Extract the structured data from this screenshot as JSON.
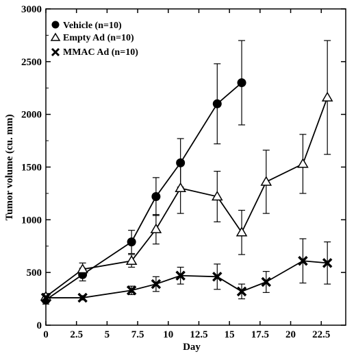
{
  "chart_data": {
    "type": "line",
    "title": "",
    "xlabel": "Day",
    "ylabel": "Tumor volume (cu. mm)",
    "xlim": [
      0,
      24.5
    ],
    "ylim": [
      0,
      3000
    ],
    "x_ticks": [
      0,
      2.5,
      5,
      7.5,
      10,
      12.5,
      15,
      17.5,
      20,
      22.5
    ],
    "x_tick_labels": [
      "0",
      "2.5",
      "5",
      "7.5",
      "10",
      "12.5",
      "15",
      "17.5",
      "20",
      "22.5"
    ],
    "y_ticks": [
      0,
      500,
      1000,
      1500,
      2000,
      2500,
      3000
    ],
    "y_tick_labels": [
      "0",
      "500",
      "1000",
      "1500",
      "2000",
      "2500",
      "3000"
    ],
    "legend_position": "top-left",
    "grid": false,
    "series": [
      {
        "name": "Vehicle (n=10)",
        "marker": "filled-circle",
        "x": [
          0,
          3,
          7,
          9,
          11,
          14,
          16
        ],
        "y": [
          240,
          480,
          790,
          1220,
          1540,
          2100,
          2300
        ],
        "err": [
          40,
          60,
          110,
          180,
          230,
          380,
          400
        ]
      },
      {
        "name": "Empty Ad (n=10)",
        "marker": "open-triangle",
        "x": [
          0,
          3,
          7,
          9,
          11,
          14,
          16,
          18,
          21,
          23
        ],
        "y": [
          270,
          530,
          610,
          910,
          1300,
          1220,
          880,
          1360,
          1530,
          2160
        ],
        "err": [
          30,
          60,
          60,
          140,
          240,
          240,
          210,
          300,
          280,
          540
        ]
      },
      {
        "name": "MMAC Ad (n=10)",
        "marker": "x-mark",
        "x": [
          0,
          3,
          7,
          9,
          11,
          14,
          16,
          18,
          21,
          23
        ],
        "y": [
          260,
          260,
          330,
          390,
          470,
          460,
          320,
          410,
          610,
          590
        ],
        "err": [
          20,
          20,
          40,
          70,
          80,
          120,
          70,
          100,
          210,
          200
        ]
      }
    ]
  }
}
